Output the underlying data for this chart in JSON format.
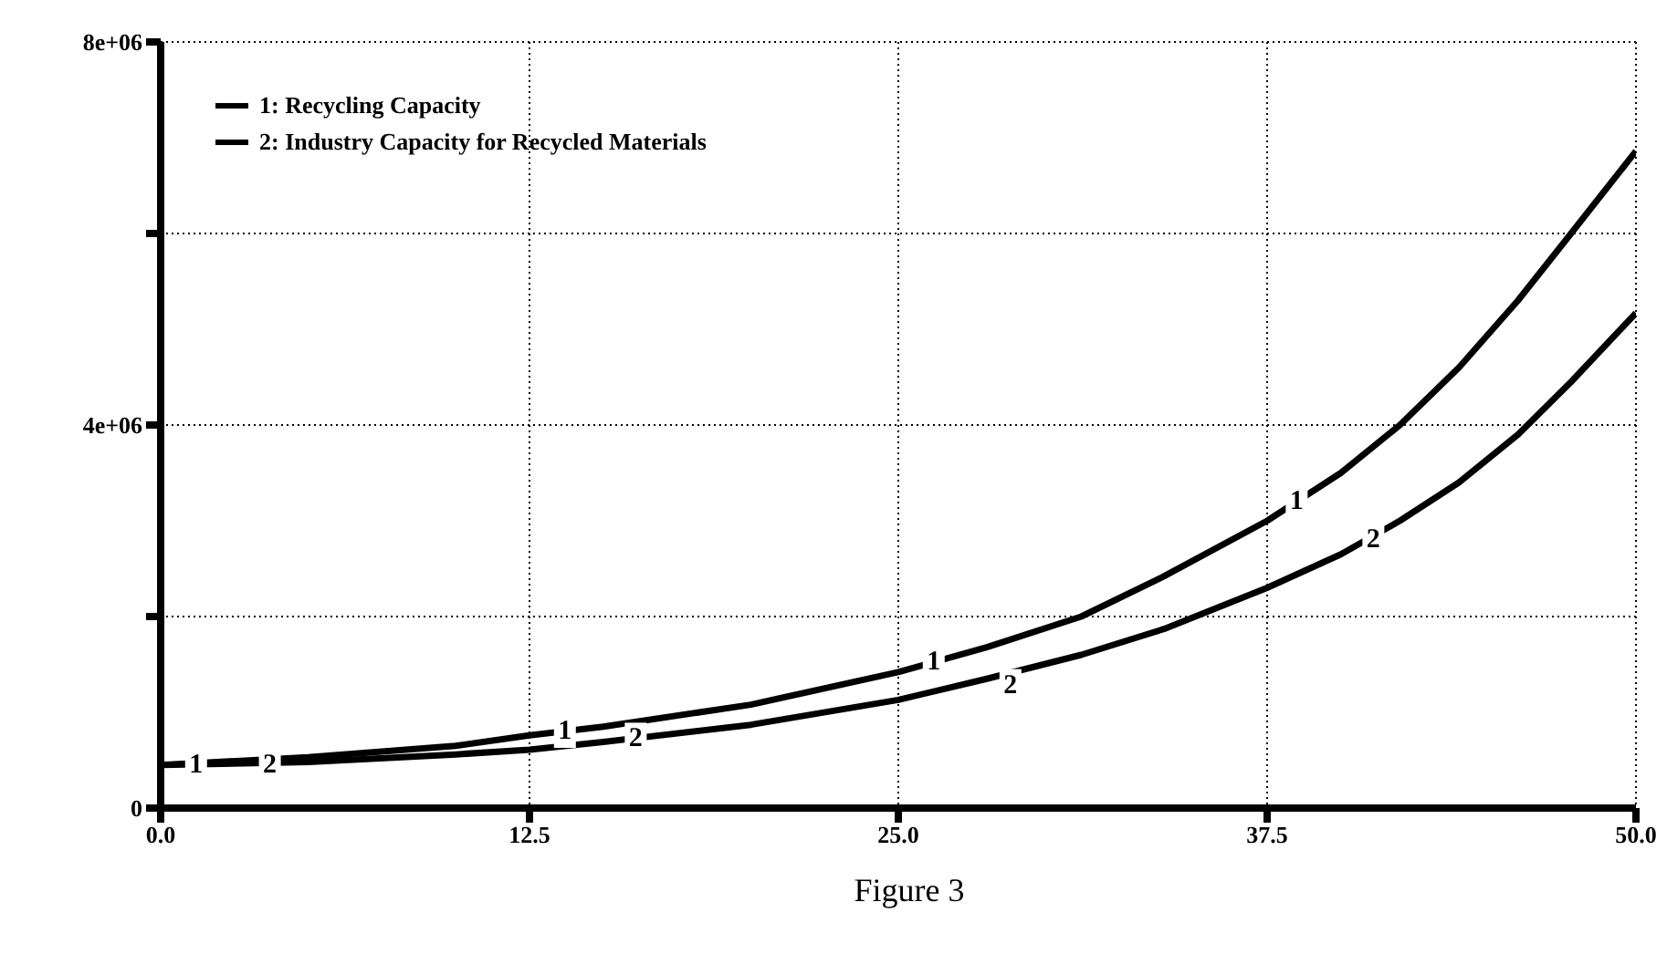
{
  "chart_data": {
    "type": "line",
    "title": "Figure 3",
    "x": [
      0,
      5,
      10,
      12.5,
      15,
      20,
      25,
      28,
      31.2,
      34,
      37.5,
      40,
      42,
      44,
      46,
      47.8,
      50
    ],
    "series": [
      {
        "name": "1: Recycling Capacity",
        "color": "#000000",
        "values": [
          450000,
          530000,
          650000,
          760000,
          850000,
          1080000,
          1420000,
          1680000,
          2000000,
          2420000,
          3000000,
          3500000,
          4000000,
          4600000,
          5300000,
          6000000,
          6860000
        ]
      },
      {
        "name": "2: Industry Capacity for Recycled Materials",
        "color": "#000000",
        "values": [
          450000,
          480000,
          560000,
          610000,
          690000,
          870000,
          1130000,
          1350000,
          1600000,
          1870000,
          2300000,
          2650000,
          3000000,
          3400000,
          3900000,
          4450000,
          5170000
        ]
      }
    ],
    "xlim": [
      0,
      50
    ],
    "xticks": [
      {
        "value": 0,
        "label": "0.0"
      },
      {
        "value": 12.5,
        "label": "12.5"
      },
      {
        "value": 25,
        "label": "25.0"
      },
      {
        "value": 37.5,
        "label": "37.5"
      },
      {
        "value": 50,
        "label": "50.0"
      }
    ],
    "ylim": [
      0,
      8000000
    ],
    "yticks": [
      {
        "value": 0,
        "label": "0"
      },
      {
        "value": 2000000,
        "label": null
      },
      {
        "value": 4000000,
        "label": "4e+06"
      },
      {
        "value": 6000000,
        "label": null
      },
      {
        "value": 8000000,
        "label": "8e+06"
      }
    ],
    "annotations": [
      {
        "text": "1",
        "x": 1.2,
        "y": 450000
      },
      {
        "text": "2",
        "x": 3.7,
        "y": 450000
      },
      {
        "text": "1",
        "x": 13.7,
        "y": 800000
      },
      {
        "text": "2",
        "x": 16.1,
        "y": 720000
      },
      {
        "text": "1",
        "x": 26.2,
        "y": 1520000
      },
      {
        "text": "2",
        "x": 28.8,
        "y": 1280000
      },
      {
        "text": "1",
        "x": 38.5,
        "y": 3200000
      },
      {
        "text": "2",
        "x": 41.1,
        "y": 2800000
      }
    ],
    "grid": true,
    "legend": "top left",
    "marker": "none",
    "line_style": "solid"
  }
}
